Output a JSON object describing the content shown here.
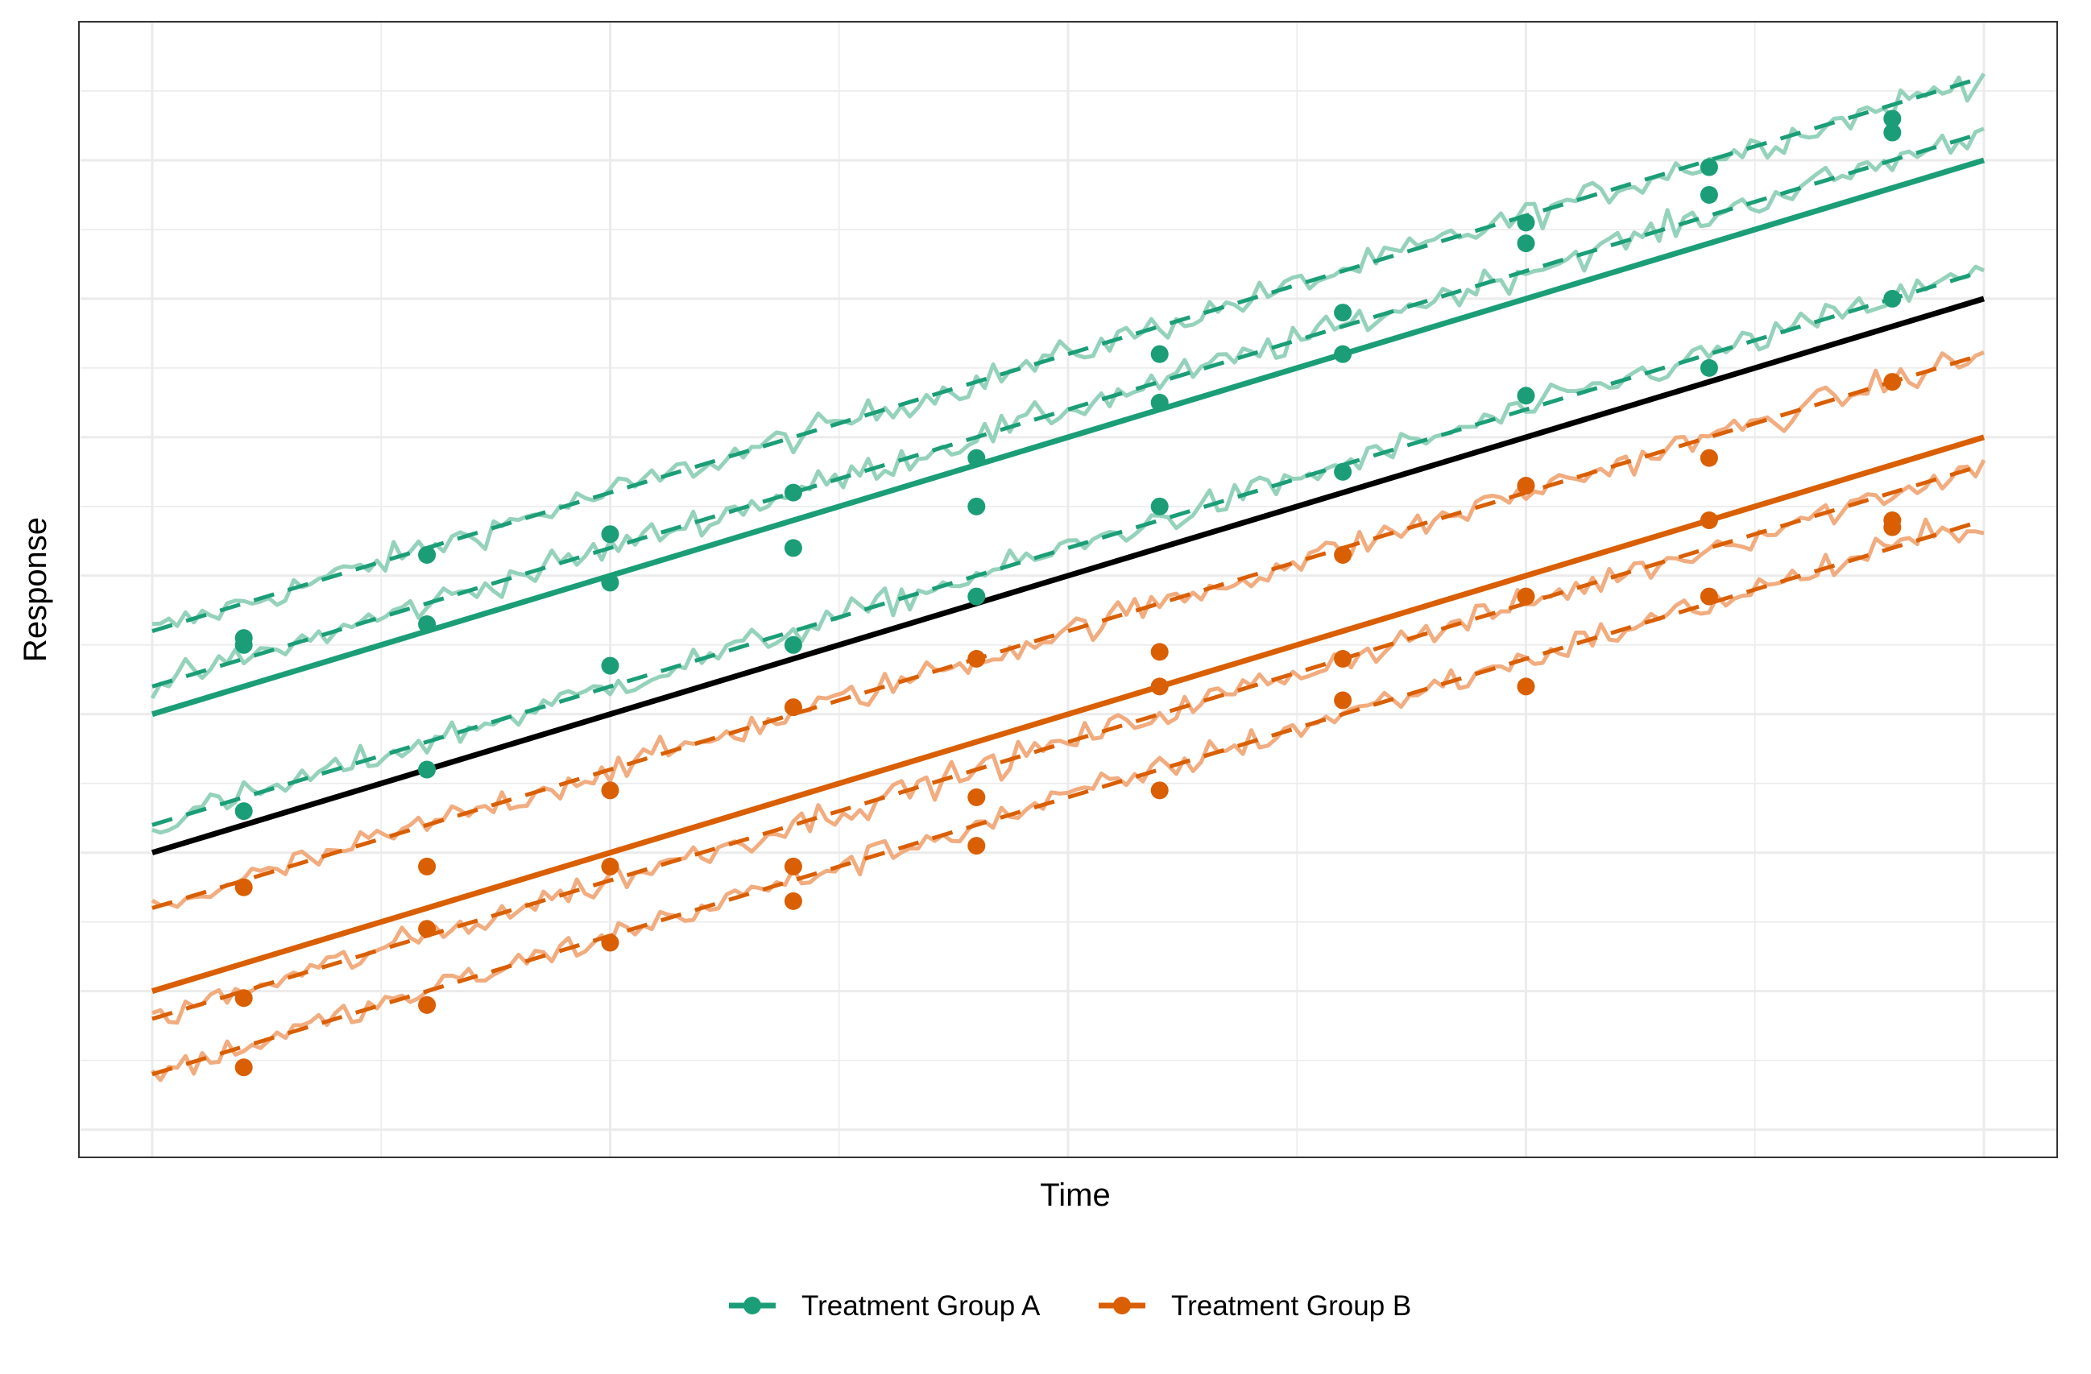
{
  "chart_data": {
    "type": "line",
    "title": "",
    "xlabel": "Time",
    "ylabel": "Response",
    "x_ticks_visible": false,
    "y_ticks_visible": false,
    "grid": true,
    "legend_position": "bottom",
    "xlim": [
      -0.4,
      10.4
    ],
    "ylim": [
      -0.2,
      8.0
    ],
    "x": [
      0,
      10
    ],
    "colors": {
      "group_a": "#1b9e77",
      "group_a_light": "#8fd0b7",
      "group_b": "#d95f02",
      "group_b_light": "#f0a878",
      "population": "#000000"
    },
    "series": [
      {
        "name": "Treatment Group A",
        "color": "#1b9e77",
        "fitted_line": [
          3.0,
          7.0
        ],
        "subjects": [
          {
            "line": [
              3.6,
              7.6
            ],
            "points": [
              [
                0.5,
                3.5
              ],
              [
                1.5,
                4.15
              ],
              [
                2.5,
                4.3
              ],
              [
                3.5,
                4.6
              ],
              [
                4.5,
                4.85
              ],
              [
                5.5,
                5.6
              ],
              [
                6.5,
                5.9
              ],
              [
                7.5,
                6.4
              ],
              [
                8.5,
                6.75
              ],
              [
                9.5,
                7.2
              ]
            ]
          },
          {
            "line": [
              3.2,
              7.2
            ],
            "points": [
              [
                0.5,
                3.55
              ],
              [
                1.5,
                3.65
              ],
              [
                2.5,
                3.95
              ],
              [
                3.5,
                4.2
              ],
              [
                4.5,
                4.5
              ],
              [
                5.5,
                5.25
              ],
              [
                6.5,
                5.6
              ],
              [
                7.5,
                6.55
              ],
              [
                8.5,
                6.95
              ],
              [
                9.5,
                7.3
              ]
            ]
          },
          {
            "line": [
              2.2,
              6.2
            ],
            "points": [
              [
                0.5,
                2.3
              ],
              [
                1.5,
                2.6
              ],
              [
                2.5,
                3.35
              ],
              [
                3.5,
                3.5
              ],
              [
                4.5,
                3.85
              ],
              [
                5.5,
                4.5
              ],
              [
                6.5,
                4.75
              ],
              [
                7.5,
                5.3
              ],
              [
                8.5,
                5.5
              ],
              [
                9.5,
                6.0
              ]
            ]
          }
        ]
      },
      {
        "name": "Treatment Group B",
        "color": "#d95f02",
        "fitted_line": [
          1.0,
          5.0
        ],
        "subjects": [
          {
            "line": [
              1.6,
              5.6
            ],
            "points": [
              [
                0.5,
                1.75
              ],
              [
                1.5,
                1.9
              ],
              [
                2.5,
                2.45
              ],
              [
                3.5,
                3.05
              ],
              [
                4.5,
                3.4
              ],
              [
                5.5,
                3.45
              ],
              [
                6.5,
                4.15
              ],
              [
                7.5,
                4.65
              ],
              [
                8.5,
                4.85
              ],
              [
                9.5,
                5.4
              ]
            ]
          },
          {
            "line": [
              0.8,
              4.8
            ],
            "points": [
              [
                0.5,
                0.95
              ],
              [
                1.5,
                1.45
              ],
              [
                2.5,
                1.9
              ],
              [
                3.5,
                1.9
              ],
              [
                4.5,
                2.4
              ],
              [
                5.5,
                3.2
              ],
              [
                6.5,
                3.4
              ],
              [
                7.5,
                3.85
              ],
              [
                8.5,
                4.4
              ],
              [
                9.5,
                4.35
              ]
            ]
          },
          {
            "line": [
              0.4,
              4.4
            ],
            "points": [
              [
                0.5,
                0.45
              ],
              [
                1.5,
                0.9
              ],
              [
                2.5,
                1.35
              ],
              [
                3.5,
                1.65
              ],
              [
                4.5,
                2.05
              ],
              [
                5.5,
                2.45
              ],
              [
                6.5,
                3.1
              ],
              [
                7.5,
                3.2
              ],
              [
                8.5,
                3.85
              ],
              [
                9.5,
                4.4
              ]
            ]
          }
        ]
      }
    ],
    "population_line": [
      2.0,
      6.0
    ],
    "legend": [
      {
        "label": "Treatment Group A",
        "color": "#1b9e77"
      },
      {
        "label": "Treatment Group B",
        "color": "#d95f02"
      }
    ]
  }
}
